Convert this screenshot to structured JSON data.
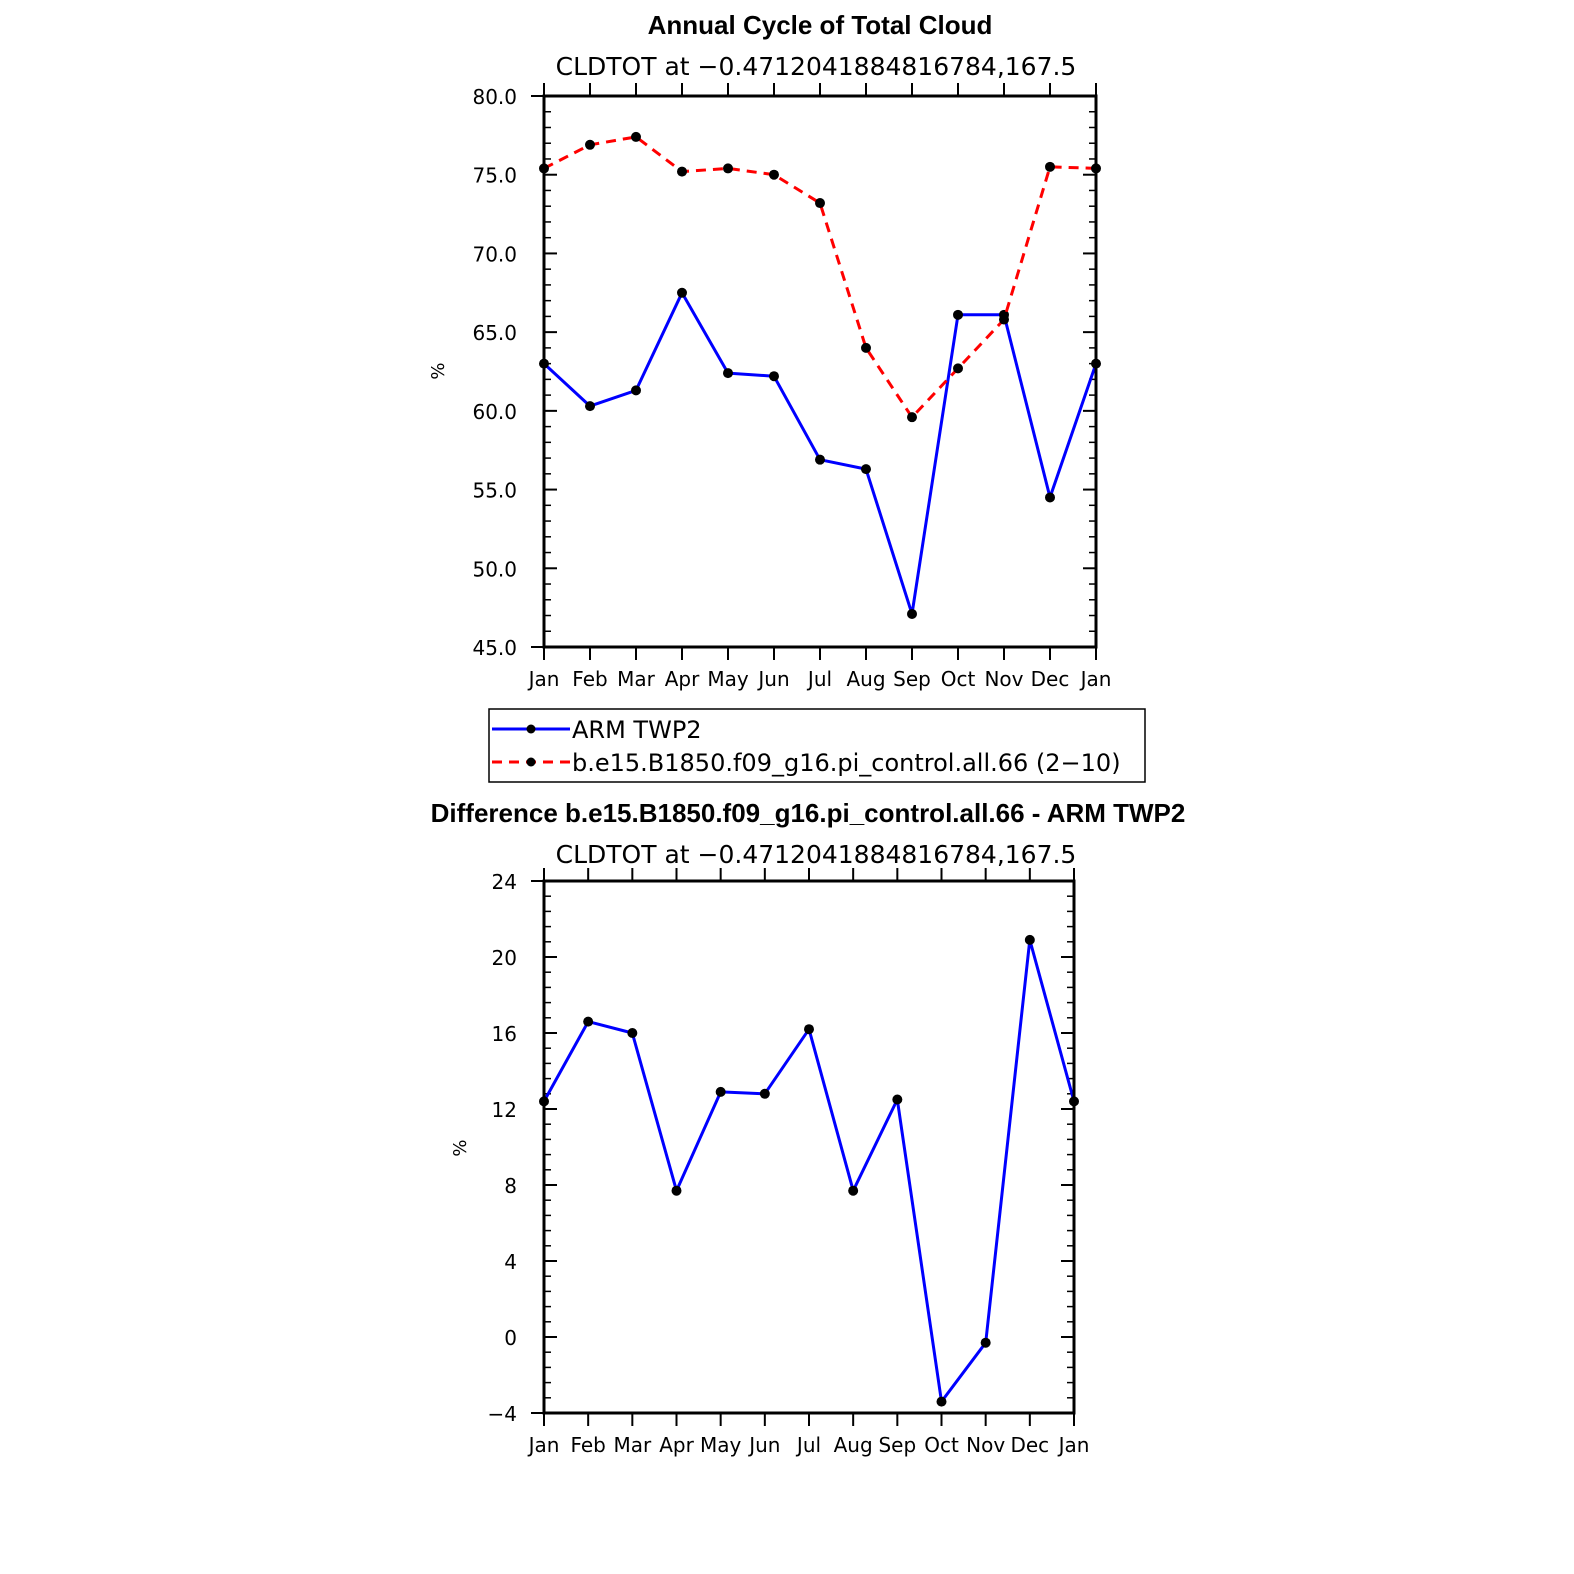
{
  "chart_data": [
    {
      "type": "line",
      "title": "Annual Cycle of Total Cloud",
      "subtitle": "CLDTOT at −0.4712041884816784,167.5",
      "xlabel": "",
      "ylabel": "%",
      "categories": [
        "Jan",
        "Feb",
        "Mar",
        "Apr",
        "May",
        "Jun",
        "Jul",
        "Aug",
        "Sep",
        "Oct",
        "Nov",
        "Dec",
        "Jan"
      ],
      "ylim": [
        45,
        80
      ],
      "yticks": [
        45,
        50,
        55,
        60,
        65,
        70,
        75,
        80
      ],
      "ytick_labels": [
        "45.0",
        "50.0",
        "55.0",
        "60.0",
        "65.0",
        "70.0",
        "75.0",
        "80.0"
      ],
      "grid": false,
      "legend_placement": "bottom",
      "series": [
        {
          "name": "ARM TWP2",
          "color": "#0000ff",
          "dash": "solid",
          "values": [
            63.0,
            60.3,
            61.3,
            67.5,
            62.4,
            62.2,
            56.9,
            56.3,
            47.1,
            66.1,
            66.1,
            54.5,
            63.0
          ]
        },
        {
          "name": "b.e15.B1850.f09_g16.pi_control.all.66 (2−10)",
          "color": "#ff0000",
          "dash": "dashed",
          "values": [
            75.4,
            76.9,
            77.4,
            75.2,
            75.4,
            75.0,
            73.2,
            64.0,
            59.6,
            62.7,
            65.8,
            75.5,
            75.4
          ]
        }
      ]
    },
    {
      "type": "line",
      "title": "Difference b.e15.B1850.f09_g16.pi_control.all.66 - ARM TWP2",
      "subtitle": "CLDTOT at −0.4712041884816784,167.5",
      "xlabel": "",
      "ylabel": "%",
      "categories": [
        "Jan",
        "Feb",
        "Mar",
        "Apr",
        "May",
        "Jun",
        "Jul",
        "Aug",
        "Sep",
        "Oct",
        "Nov",
        "Dec",
        "Jan"
      ],
      "ylim": [
        -4,
        24
      ],
      "yticks": [
        -4,
        0,
        4,
        8,
        12,
        16,
        20,
        24
      ],
      "ytick_labels": [
        "−4",
        "0",
        "4",
        "8",
        "12",
        "16",
        "20",
        "24"
      ],
      "grid": false,
      "series": [
        {
          "color": "#0000ff",
          "dash": "solid",
          "values": [
            12.4,
            16.6,
            16.0,
            7.7,
            12.9,
            12.8,
            16.2,
            7.7,
            12.5,
            -3.4,
            -0.3,
            20.9,
            12.4
          ]
        }
      ]
    }
  ]
}
